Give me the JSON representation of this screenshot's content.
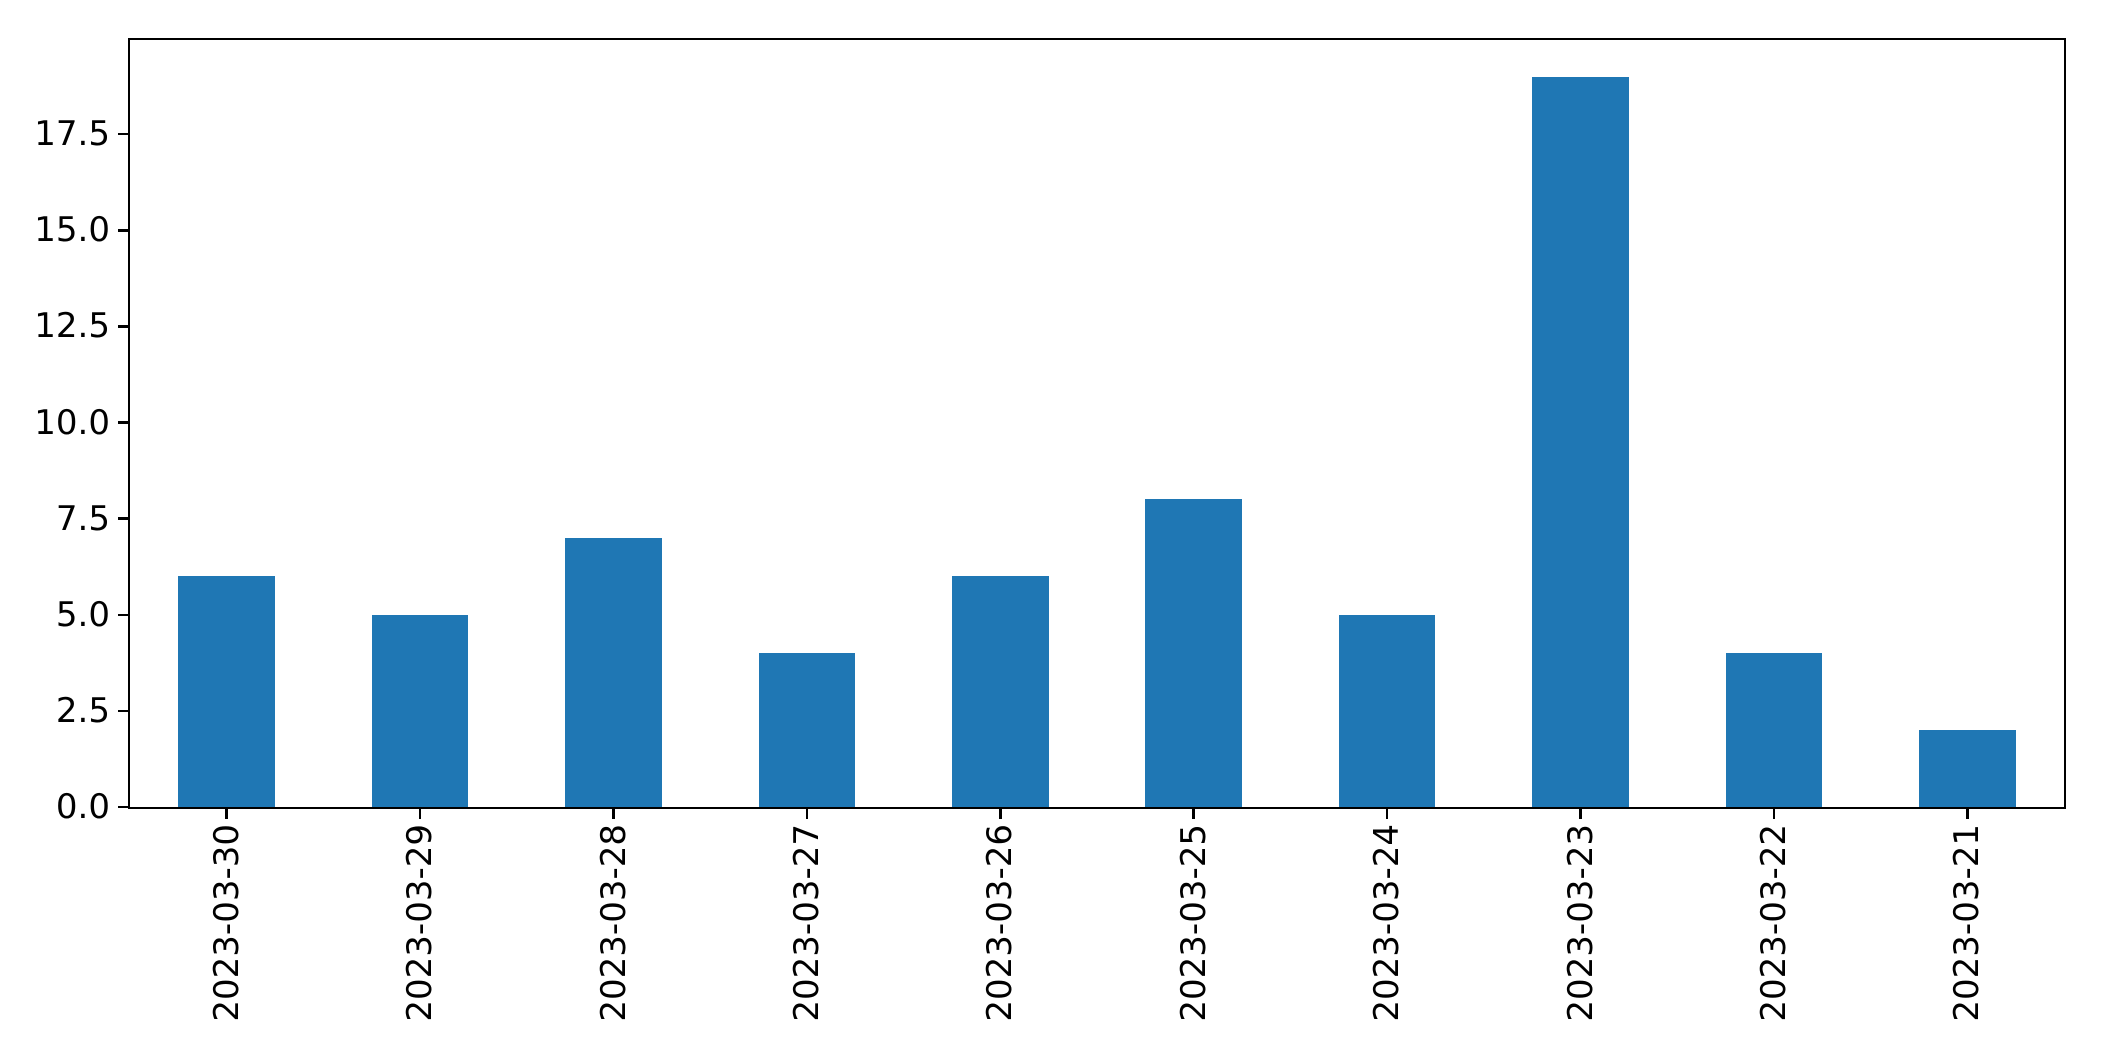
{
  "figure": {
    "background": "#ffffff"
  },
  "chart_data": {
    "type": "bar",
    "title": "",
    "xlabel": "",
    "ylabel": "",
    "categories": [
      "2023-03-30",
      "2023-03-29",
      "2023-03-28",
      "2023-03-27",
      "2023-03-26",
      "2023-03-25",
      "2023-03-24",
      "2023-03-23",
      "2023-03-22",
      "2023-03-21"
    ],
    "values": [
      6,
      5,
      7,
      4,
      6,
      8,
      5,
      19,
      4,
      2
    ],
    "bar_color": "#1f77b4",
    "bar_width_fraction": 0.5,
    "ylim": [
      0,
      19.95
    ],
    "ytick_values": [
      0,
      2.5,
      5,
      7.5,
      10,
      12.5,
      15,
      17.5
    ],
    "ytick_labels": [
      "0.0",
      "2.5",
      "5.0",
      "7.5",
      "10.0",
      "12.5",
      "15.0",
      "17.5"
    ],
    "xtick_rotation_deg": 90,
    "grid": false,
    "legend": "none",
    "axis_color": "#000000",
    "text_color": "#000000"
  }
}
